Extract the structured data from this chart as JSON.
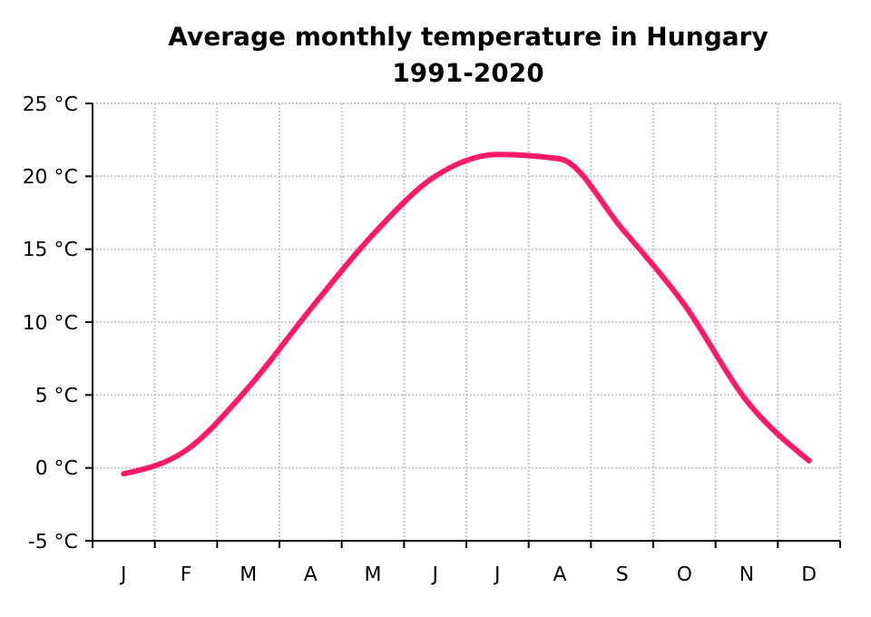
{
  "chart_data": {
    "type": "line",
    "title": "Average monthly temperature in Hungary\n1991-2020",
    "categories": [
      "J",
      "F",
      "M",
      "A",
      "M",
      "J",
      "J",
      "A",
      "S",
      "O",
      "N",
      "D"
    ],
    "series": [
      {
        "color": "#ff1a66",
        "values": [
          -0.4,
          1.2,
          5.5,
          10.9,
          16.0,
          20.0,
          21.5,
          21.2,
          16.4,
          11.2,
          4.6,
          0.5
        ]
      }
    ],
    "ylim": [
      -5,
      25
    ],
    "yticks": [
      {
        "value": -5,
        "label": "-5 °C"
      },
      {
        "value": 0,
        "label": "0 °C"
      },
      {
        "value": 5,
        "label": "5 °C"
      },
      {
        "value": 10,
        "label": "10 °C"
      },
      {
        "value": 15,
        "label": "15 °C"
      },
      {
        "value": 20,
        "label": "20 °C"
      },
      {
        "value": 25,
        "label": "25 °C"
      }
    ],
    "grid": true,
    "marker": "none",
    "line_style": "solid"
  }
}
